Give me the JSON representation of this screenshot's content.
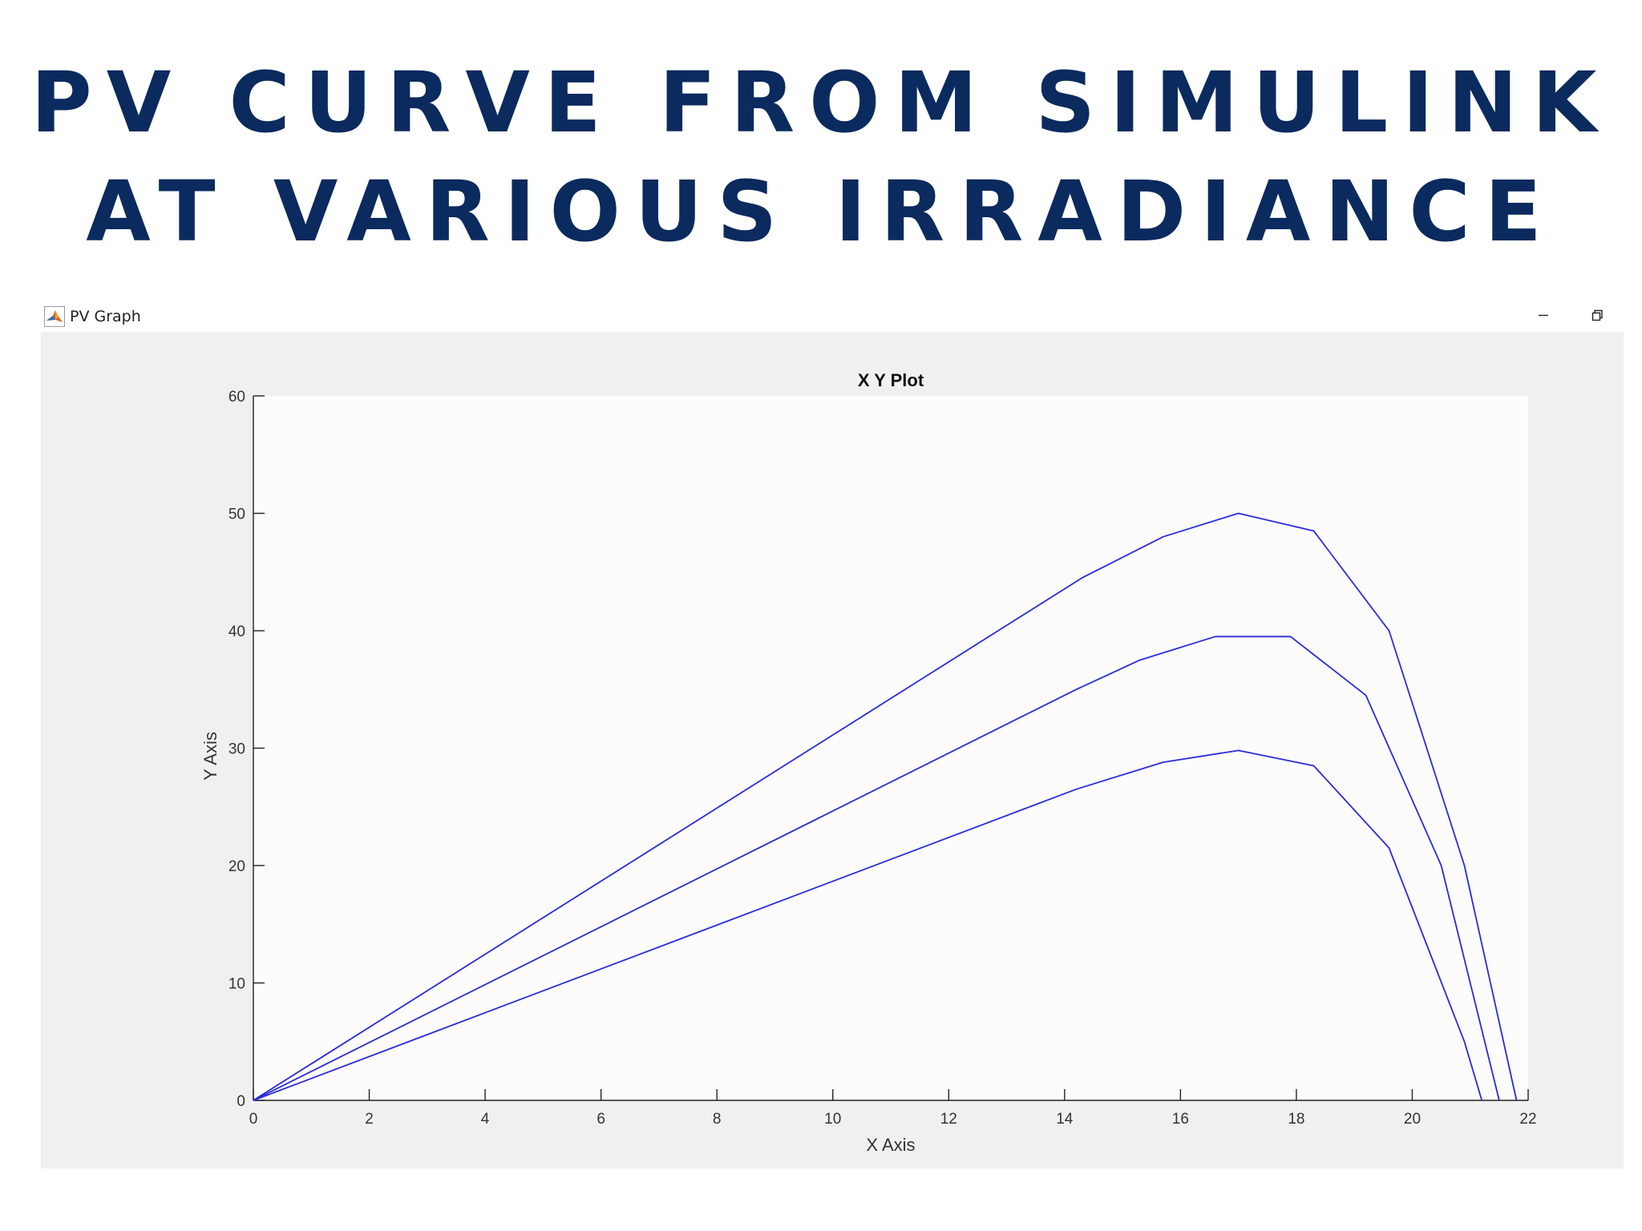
{
  "slide": {
    "title_line1": "PV CURVE FROM SIMULINK",
    "title_line2": "AT VARIOUS IRRADIANCE"
  },
  "window": {
    "title": "PV Graph",
    "icon": "matlab-icon",
    "controls": [
      "minimize-icon",
      "restore-icon"
    ]
  },
  "colors": {
    "title": "#0b2a5e",
    "series_line": "#2b2bd8",
    "plot_background": "#fcfcfd",
    "figure_background": "#f0f0f0"
  },
  "chart_data": {
    "type": "line",
    "title": "X Y Plot",
    "xlabel": "X Axis",
    "ylabel": "Y Axis",
    "xlim": [
      0,
      22
    ],
    "ylim": [
      0,
      60
    ],
    "xticks": [
      0,
      2,
      4,
      6,
      8,
      10,
      12,
      14,
      16,
      18,
      20,
      22
    ],
    "yticks": [
      0,
      10,
      20,
      30,
      40,
      50,
      60
    ],
    "grid": false,
    "legend": "none",
    "series": [
      {
        "x": [
          0,
          14.3,
          15.7,
          17.0,
          18.3,
          19.6,
          20.9,
          21.8
        ],
        "y": [
          0,
          44.5,
          48.0,
          50.0,
          48.5,
          40.0,
          20.0,
          0
        ]
      },
      {
        "x": [
          0,
          14.2,
          15.3,
          16.6,
          17.9,
          19.2,
          20.5,
          21.5
        ],
        "y": [
          0,
          35.0,
          37.5,
          39.5,
          39.5,
          34.5,
          20.0,
          0
        ]
      },
      {
        "x": [
          0,
          14.2,
          15.7,
          17.0,
          18.3,
          19.6,
          20.9,
          21.2
        ],
        "y": [
          0,
          26.5,
          28.8,
          29.8,
          28.5,
          21.5,
          5.0,
          0
        ]
      }
    ]
  }
}
